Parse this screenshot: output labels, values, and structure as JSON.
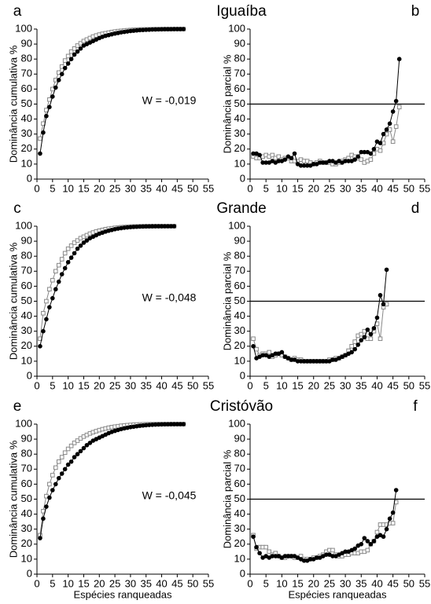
{
  "chart_data": [
    {
      "type": "line",
      "panel": "a",
      "title": "Iguaíba",
      "annotation": "W = -0,019",
      "ylabel": "Dominância cumulativa %",
      "x": [
        1,
        2,
        3,
        4,
        5,
        6,
        7,
        8,
        9,
        10,
        11,
        12,
        13,
        14,
        15,
        16,
        17,
        18,
        19,
        20,
        21,
        22,
        23,
        24,
        25,
        26,
        27,
        28,
        29,
        30,
        31,
        32,
        33,
        34,
        35,
        36,
        37,
        38,
        39,
        40,
        41,
        42,
        43,
        44,
        45,
        46,
        47
      ],
      "series": [
        {
          "color": "#888888",
          "marker": "square",
          "values": [
            27,
            37,
            46,
            53,
            60,
            66,
            71,
            75,
            79,
            82,
            85,
            87,
            89,
            90.5,
            92,
            93,
            94,
            95,
            95.7,
            96.3,
            96.8,
            97.2,
            97.6,
            98,
            98.3,
            98.6,
            98.8,
            99,
            99.2,
            99.35,
            99.5,
            99.6,
            99.7,
            99.75,
            99.8,
            99.85,
            99.9,
            99.92,
            99.94,
            99.96,
            99.98,
            99.99,
            100,
            100,
            100,
            100,
            100
          ]
        },
        {
          "color": "#000000",
          "marker": "circle",
          "values": [
            17,
            31,
            42,
            48,
            55,
            61,
            66,
            70,
            74,
            77,
            80,
            83,
            85,
            87,
            89,
            90,
            91,
            92,
            93,
            94,
            94.8,
            95.5,
            96,
            96.5,
            97,
            97.4,
            97.8,
            98.1,
            98.4,
            98.7,
            98.9,
            99.1,
            99.3,
            99.4,
            99.5,
            99.6,
            99.7,
            99.75,
            99.8,
            99.85,
            99.9,
            99.92,
            99.94,
            99.96,
            99.98,
            99.99,
            100
          ]
        }
      ],
      "xlim": [
        0,
        55
      ],
      "xticks": [
        0,
        5,
        10,
        15,
        20,
        25,
        30,
        35,
        40,
        45,
        50,
        55
      ],
      "ylim": [
        0,
        100
      ],
      "yticks": [
        0,
        10,
        20,
        30,
        40,
        50,
        60,
        70,
        80,
        90,
        100
      ]
    },
    {
      "type": "line",
      "panel": "b",
      "ylabel": "Dominância parcial %",
      "reference_line": 50,
      "x": [
        1,
        2,
        3,
        4,
        5,
        6,
        7,
        8,
        9,
        10,
        11,
        12,
        13,
        14,
        15,
        16,
        17,
        18,
        19,
        20,
        21,
        22,
        23,
        24,
        25,
        26,
        27,
        28,
        29,
        30,
        31,
        32,
        33,
        34,
        35,
        36,
        37,
        38,
        39,
        40,
        41,
        42,
        43,
        44,
        45,
        46,
        47
      ],
      "series": [
        {
          "color": "#888888",
          "marker": "square",
          "values": [
            15,
            14,
            14,
            15,
            16,
            15,
            16,
            14,
            15,
            13,
            14,
            14,
            12,
            12,
            12,
            13,
            12,
            12,
            11,
            10,
            11,
            12,
            11,
            11,
            11,
            10,
            10,
            11,
            12,
            13,
            14,
            16,
            15,
            14,
            13,
            11,
            12,
            13,
            17,
            20,
            19,
            24,
            30,
            33,
            25,
            35,
            48
          ]
        },
        {
          "color": "#000000",
          "marker": "circle",
          "values": [
            17,
            17,
            16,
            11,
            11,
            11,
            12,
            11,
            12,
            12,
            13,
            15,
            14,
            17,
            10,
            9,
            9,
            9,
            9,
            10,
            10,
            11,
            11,
            11,
            12,
            12,
            11,
            12,
            11,
            12,
            12,
            12,
            13,
            15,
            18,
            18,
            18,
            17,
            20,
            25,
            24,
            30,
            33,
            37,
            45,
            52,
            80
          ]
        }
      ],
      "xlim": [
        0,
        55
      ],
      "xticks": [
        0,
        5,
        10,
        15,
        20,
        25,
        30,
        35,
        40,
        45,
        50,
        55
      ],
      "ylim": [
        0,
        100
      ],
      "yticks": [
        0,
        10,
        20,
        30,
        40,
        50,
        60,
        70,
        80,
        90,
        100
      ]
    },
    {
      "type": "line",
      "panel": "c",
      "title": "Grande",
      "annotation": "W = -0,048",
      "ylabel": "Dominância cumulativa %",
      "x": [
        1,
        2,
        3,
        4,
        5,
        6,
        7,
        8,
        9,
        10,
        11,
        12,
        13,
        14,
        15,
        16,
        17,
        18,
        19,
        20,
        21,
        22,
        23,
        24,
        25,
        26,
        27,
        28,
        29,
        30,
        31,
        32,
        33,
        34,
        35,
        36,
        37,
        38,
        39,
        40,
        41,
        42,
        43,
        44
      ],
      "series": [
        {
          "color": "#888888",
          "marker": "square",
          "values": [
            25,
            42,
            50,
            58,
            64,
            70,
            74,
            78,
            82,
            85,
            87,
            89,
            90.5,
            92,
            93,
            94,
            95,
            95.8,
            96.5,
            97,
            97.5,
            98,
            98.3,
            98.6,
            98.9,
            99.1,
            99.3,
            99.45,
            99.6,
            99.7,
            99.78,
            99.85,
            99.9,
            99.93,
            99.96,
            99.98,
            100,
            100,
            100,
            100,
            100,
            100,
            100,
            100
          ]
        },
        {
          "color": "#000000",
          "marker": "circle",
          "values": [
            20,
            30,
            38,
            46,
            52,
            58,
            63,
            68,
            72,
            76,
            79,
            82,
            85,
            87,
            89,
            90.5,
            92,
            93,
            94,
            95,
            95.7,
            96.4,
            97,
            97.5,
            98,
            98.4,
            98.7,
            99,
            99.2,
            99.4,
            99.55,
            99.65,
            99.75,
            99.82,
            99.88,
            99.92,
            99.95,
            99.97,
            99.98,
            99.99,
            100,
            100,
            100,
            100
          ]
        }
      ],
      "xlim": [
        0,
        55
      ],
      "xticks": [
        0,
        5,
        10,
        15,
        20,
        25,
        30,
        35,
        40,
        45,
        50,
        55
      ],
      "ylim": [
        0,
        100
      ],
      "yticks": [
        0,
        10,
        20,
        30,
        40,
        50,
        60,
        70,
        80,
        90,
        100
      ]
    },
    {
      "type": "line",
      "panel": "d",
      "ylabel": "Dominância parcial %",
      "reference_line": 50,
      "x": [
        1,
        2,
        3,
        4,
        5,
        6,
        7,
        8,
        9,
        10,
        11,
        12,
        13,
        14,
        15,
        16,
        17,
        18,
        19,
        20,
        21,
        22,
        23,
        24,
        25,
        26,
        27,
        28,
        29,
        30,
        31,
        32,
        33,
        34,
        35,
        36,
        37,
        38,
        39,
        40,
        41,
        42,
        43
      ],
      "series": [
        {
          "color": "#888888",
          "marker": "square",
          "values": [
            25,
            18,
            14,
            15,
            15,
            16,
            13,
            14,
            15,
            14,
            13,
            12,
            11,
            12,
            11,
            11,
            10,
            10,
            10,
            10,
            10,
            10,
            10,
            10,
            11,
            11,
            12,
            12,
            13,
            14,
            17,
            20,
            23,
            27,
            28,
            30,
            25,
            25,
            30,
            35,
            25,
            46,
            48
          ]
        },
        {
          "color": "#000000",
          "marker": "circle",
          "values": [
            20,
            12,
            13,
            14,
            14,
            13,
            14,
            15,
            15,
            16,
            13,
            12,
            11,
            11,
            10,
            10,
            10,
            10,
            10,
            10,
            10,
            10,
            10,
            10,
            10,
            11,
            11,
            12,
            13,
            14,
            15,
            16,
            18,
            21,
            24,
            26,
            31,
            28,
            32,
            39,
            54,
            48,
            71
          ]
        }
      ],
      "xlim": [
        0,
        55
      ],
      "xticks": [
        0,
        5,
        10,
        15,
        20,
        25,
        30,
        35,
        40,
        45,
        50,
        55
      ],
      "ylim": [
        0,
        100
      ],
      "yticks": [
        0,
        10,
        20,
        30,
        40,
        50,
        60,
        70,
        80,
        90,
        100
      ]
    },
    {
      "type": "line",
      "panel": "e",
      "title": "Cristóvão",
      "annotation": "W = -0,045",
      "ylabel": "Dominância cumulativa %",
      "xlabel": "Espécies ranqueadas",
      "x": [
        1,
        2,
        3,
        4,
        5,
        6,
        7,
        8,
        9,
        10,
        11,
        12,
        13,
        14,
        15,
        16,
        17,
        18,
        19,
        20,
        21,
        22,
        23,
        24,
        25,
        26,
        27,
        28,
        29,
        30,
        31,
        32,
        33,
        34,
        35,
        36,
        37,
        38,
        39,
        40,
        41,
        42,
        43,
        44,
        45,
        46,
        47
      ],
      "series": [
        {
          "color": "#888888",
          "marker": "square",
          "values": [
            26,
            42,
            52,
            60,
            66,
            71,
            75,
            78,
            81,
            83.5,
            85.5,
            87.5,
            89,
            90.5,
            91.7,
            92.8,
            93.8,
            94.6,
            95.3,
            96,
            96.6,
            97.1,
            97.6,
            98,
            98.3,
            98.6,
            98.9,
            99.1,
            99.3,
            99.45,
            99.6,
            99.7,
            99.78,
            99.85,
            99.9,
            99.94,
            99.97,
            99.99,
            100,
            100,
            100,
            100,
            100,
            100,
            100,
            100,
            100
          ]
        },
        {
          "color": "#000000",
          "marker": "circle",
          "values": [
            24,
            37,
            45,
            51,
            56,
            60,
            64,
            67,
            70,
            73,
            75,
            78,
            80,
            82,
            84,
            86,
            87.5,
            89,
            90,
            91,
            92,
            93,
            94,
            94.8,
            95.5,
            96.1,
            96.7,
            97.2,
            97.6,
            98,
            98.3,
            98.6,
            98.9,
            99.1,
            99.3,
            99.45,
            99.6,
            99.7,
            99.78,
            99.85,
            99.9,
            99.94,
            99.97,
            99.99,
            100,
            100,
            100
          ]
        }
      ],
      "xlim": [
        0,
        55
      ],
      "xticks": [
        0,
        5,
        10,
        15,
        20,
        25,
        30,
        35,
        40,
        45,
        50,
        55
      ],
      "ylim": [
        0,
        100
      ],
      "yticks": [
        0,
        10,
        20,
        30,
        40,
        50,
        60,
        70,
        80,
        90,
        100
      ]
    },
    {
      "type": "line",
      "panel": "f",
      "ylabel": "Dominância parcial %",
      "xlabel": "Espécies ranqueadas",
      "reference_line": 50,
      "x": [
        1,
        2,
        3,
        4,
        5,
        6,
        7,
        8,
        9,
        10,
        11,
        12,
        13,
        14,
        15,
        16,
        17,
        18,
        19,
        20,
        21,
        22,
        23,
        24,
        25,
        26,
        27,
        28,
        29,
        30,
        31,
        32,
        33,
        34,
        35,
        36,
        37,
        38,
        39,
        40,
        41,
        42,
        43,
        44,
        45,
        46
      ],
      "series": [
        {
          "color": "#888888",
          "marker": "square",
          "values": [
            26,
            17,
            18,
            18,
            18,
            15,
            13,
            14,
            12,
            11,
            11,
            12,
            12,
            11,
            11,
            12,
            10,
            10,
            10,
            11,
            11,
            12,
            13,
            15,
            16,
            16,
            13,
            12,
            12,
            13,
            13,
            14,
            14,
            14,
            15,
            15,
            16,
            20,
            22,
            28,
            33,
            33,
            33,
            34,
            34,
            48
          ]
        },
        {
          "color": "#000000",
          "marker": "circle",
          "values": [
            25,
            18,
            14,
            11,
            12,
            11,
            12,
            12,
            12,
            11,
            12,
            12,
            12,
            12,
            11,
            10,
            9,
            9,
            10,
            10,
            11,
            11,
            12,
            13,
            13,
            12,
            12,
            13,
            14,
            15,
            15,
            16,
            17,
            19,
            20,
            24,
            22,
            20,
            22,
            25,
            26,
            25,
            30,
            37,
            41,
            56
          ]
        }
      ],
      "xlim": [
        0,
        55
      ],
      "xticks": [
        0,
        5,
        10,
        15,
        20,
        25,
        30,
        35,
        40,
        45,
        50,
        55
      ],
      "ylim": [
        0,
        100
      ],
      "yticks": [
        0,
        10,
        20,
        30,
        40,
        50,
        60,
        70,
        80,
        90,
        100
      ]
    }
  ]
}
